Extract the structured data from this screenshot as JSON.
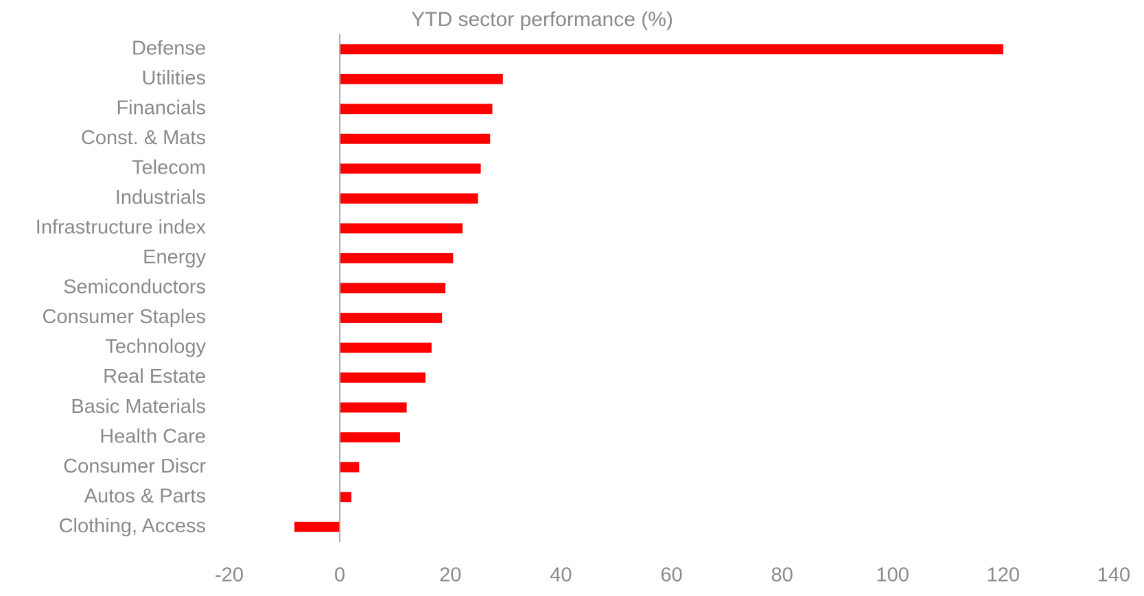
{
  "chart_data": {
    "type": "bar",
    "orientation": "horizontal",
    "title": "YTD sector performance  (%)",
    "categories": [
      "Defense",
      "Utilities",
      "Financials",
      "Const. & Mats",
      "Telecom",
      "Industrials",
      "Infrastructure index",
      "Energy",
      "Semiconductors",
      "Consumer Staples",
      "Technology",
      "Real Estate",
      "Basic Materials",
      "Health Care",
      "Consumer Discr",
      "Autos & Parts",
      "Clothing, Access"
    ],
    "values": [
      120.0,
      29.5,
      27.6,
      27.2,
      25.5,
      25.0,
      22.2,
      20.5,
      19.1,
      18.5,
      16.6,
      15.5,
      12.1,
      10.9,
      3.5,
      2.1,
      -8.2
    ],
    "color": "#ff0000",
    "xlim": [
      -20,
      140
    ],
    "xticks": [
      -20,
      0,
      20,
      40,
      60,
      80,
      100,
      120,
      140
    ],
    "grid": false
  }
}
